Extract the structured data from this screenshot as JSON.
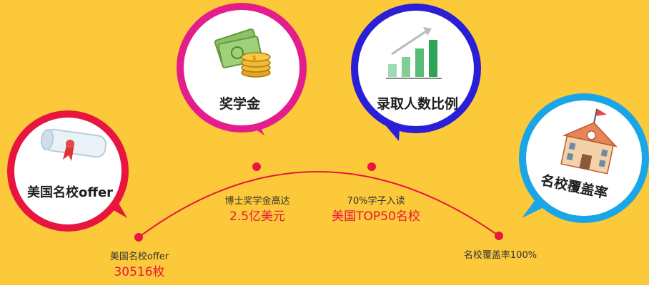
{
  "bubbles": {
    "offer": {
      "label": "美国名校offer",
      "icon": "diploma-icon",
      "color": "#e8153f"
    },
    "scholarship": {
      "label": "奖学金",
      "icon": "money-coins-icon",
      "color": "#e41d8c"
    },
    "admission": {
      "label": "录取人数比例",
      "icon": "bar-growth-icon",
      "color": "#2a1fd6"
    },
    "coverage": {
      "label": "名校覆盖率",
      "icon": "school-building-icon",
      "color": "#1aa6e6"
    }
  },
  "stats": [
    {
      "caption": "美国名校offer",
      "value": "30516枚"
    },
    {
      "caption": "博士奖学金高达",
      "value": "2.5亿美元"
    },
    {
      "caption": "70%学子入读",
      "value": "美国TOP50名校"
    },
    {
      "caption": "名校覆盖率100%",
      "value": ""
    }
  ],
  "colors": {
    "background": "#fcc93a",
    "arc": "#e8153f",
    "value_text": "#e8153f"
  }
}
